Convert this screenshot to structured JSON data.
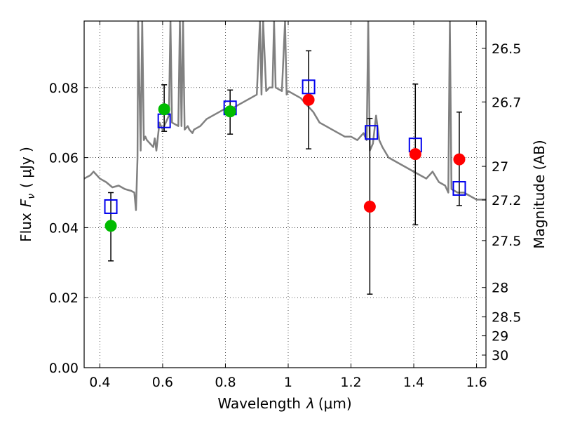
{
  "chart_data": {
    "type": "scatter",
    "xlabel_prefix": "Wavelength",
    "xlabel_symbol": "λ",
    "xlabel_unit": "(μm)",
    "ylabel_prefix": "Flux",
    "ylabel_symbol": "F",
    "ylabel_sub": "ν",
    "ylabel_unit": "( μJy )",
    "y2label": "Magnitude (AB)",
    "xlim": [
      0.35,
      1.63
    ],
    "ylim": [
      0.0,
      0.099
    ],
    "grid": true,
    "x_ticks": [
      0.4,
      0.6,
      0.8,
      1.0,
      1.2,
      1.4,
      1.6
    ],
    "x_tick_labels": [
      "0.4",
      "0.6",
      "0.8",
      "1",
      "1.2",
      "1.4",
      "1.6"
    ],
    "y_ticks": [
      0.0,
      0.02,
      0.04,
      0.06,
      0.08
    ],
    "y_tick_labels": [
      "0.00",
      "0.02",
      "0.04",
      "0.06",
      "0.08"
    ],
    "y2_ticks": [
      {
        "label": "26.5",
        "flux": 0.0912
      },
      {
        "label": "26.7",
        "flux": 0.0759
      },
      {
        "label": "27",
        "flux": 0.0575
      },
      {
        "label": "27.2",
        "flux": 0.0479
      },
      {
        "label": "27.5",
        "flux": 0.0363
      },
      {
        "label": "28",
        "flux": 0.0229
      },
      {
        "label": "28.5",
        "flux": 0.0145
      },
      {
        "label": "29",
        "flux": 0.0091
      },
      {
        "label": "30",
        "flux": 0.0036
      }
    ],
    "colors": {
      "model": "#808080",
      "model_points": "#0000ee",
      "measured_optical": "#00bb00",
      "measured_ir": "#ff0000",
      "errorbar": "#000000"
    },
    "model_spectrum": {
      "x": [
        0.35,
        0.37,
        0.38,
        0.4,
        0.42,
        0.44,
        0.46,
        0.48,
        0.5,
        0.51,
        0.515,
        0.52,
        0.522,
        0.53,
        0.535,
        0.54,
        0.545,
        0.55,
        0.56,
        0.57,
        0.575,
        0.58,
        0.59,
        0.6,
        0.61,
        0.62,
        0.625,
        0.63,
        0.64,
        0.65,
        0.655,
        0.66,
        0.665,
        0.67,
        0.68,
        0.685,
        0.69,
        0.695,
        0.7,
        0.72,
        0.73,
        0.74,
        0.76,
        0.78,
        0.8,
        0.82,
        0.84,
        0.86,
        0.88,
        0.9,
        0.91,
        0.915,
        0.92,
        0.93,
        0.94,
        0.95,
        0.955,
        0.96,
        0.98,
        0.99,
        0.995,
        1.0,
        1.02,
        1.04,
        1.06,
        1.08,
        1.1,
        1.12,
        1.14,
        1.16,
        1.18,
        1.2,
        1.22,
        1.24,
        1.25,
        1.255,
        1.26,
        1.27,
        1.28,
        1.29,
        1.3,
        1.32,
        1.34,
        1.36,
        1.38,
        1.4,
        1.42,
        1.44,
        1.46,
        1.48,
        1.5,
        1.51,
        1.515,
        1.52,
        1.54,
        1.56,
        1.58,
        1.6,
        1.63
      ],
      "y": [
        0.054,
        0.055,
        0.056,
        0.054,
        0.053,
        0.0515,
        0.052,
        0.051,
        0.0505,
        0.05,
        0.045,
        0.06,
        0.099,
        0.062,
        0.099,
        0.065,
        0.066,
        0.065,
        0.064,
        0.063,
        0.0655,
        0.062,
        0.07,
        0.068,
        0.07,
        0.072,
        0.099,
        0.07,
        0.0695,
        0.069,
        0.099,
        0.069,
        0.099,
        0.068,
        0.069,
        0.068,
        0.0675,
        0.067,
        0.068,
        0.069,
        0.07,
        0.071,
        0.072,
        0.073,
        0.074,
        0.074,
        0.075,
        0.076,
        0.077,
        0.078,
        0.099,
        0.078,
        0.099,
        0.079,
        0.08,
        0.08,
        0.099,
        0.08,
        0.079,
        0.099,
        0.078,
        0.079,
        0.078,
        0.077,
        0.075,
        0.073,
        0.07,
        0.069,
        0.068,
        0.067,
        0.066,
        0.066,
        0.065,
        0.067,
        0.065,
        0.099,
        0.062,
        0.064,
        0.072,
        0.065,
        0.063,
        0.06,
        0.059,
        0.058,
        0.057,
        0.056,
        0.055,
        0.054,
        0.056,
        0.053,
        0.052,
        0.05,
        0.099,
        0.051,
        0.05,
        0.05,
        0.049,
        0.048,
        0.048
      ]
    },
    "series": [
      {
        "name": "model",
        "marker": "square",
        "x": [
          0.435,
          0.605,
          0.815,
          1.065,
          1.265,
          1.405,
          1.545
        ],
        "y": [
          0.046,
          0.0705,
          0.0742,
          0.0802,
          0.0672,
          0.0636,
          0.0512
        ]
      },
      {
        "name": "measured-optical",
        "marker": "circle",
        "x": [
          0.435,
          0.605,
          0.815
        ],
        "y": [
          0.0405,
          0.0738,
          0.0732
        ],
        "err_low": [
          0.0305,
          0.0675,
          0.0667
        ],
        "err_high": [
          0.05,
          0.0808,
          0.0793
        ]
      },
      {
        "name": "measured-ir",
        "marker": "circle",
        "x": [
          1.065,
          1.26,
          1.405,
          1.545
        ],
        "y": [
          0.0765,
          0.046,
          0.061,
          0.0595
        ],
        "err_low": [
          0.0625,
          0.021,
          0.0408,
          0.0463
        ],
        "err_high": [
          0.0905,
          0.0712,
          0.081,
          0.073
        ]
      }
    ]
  }
}
